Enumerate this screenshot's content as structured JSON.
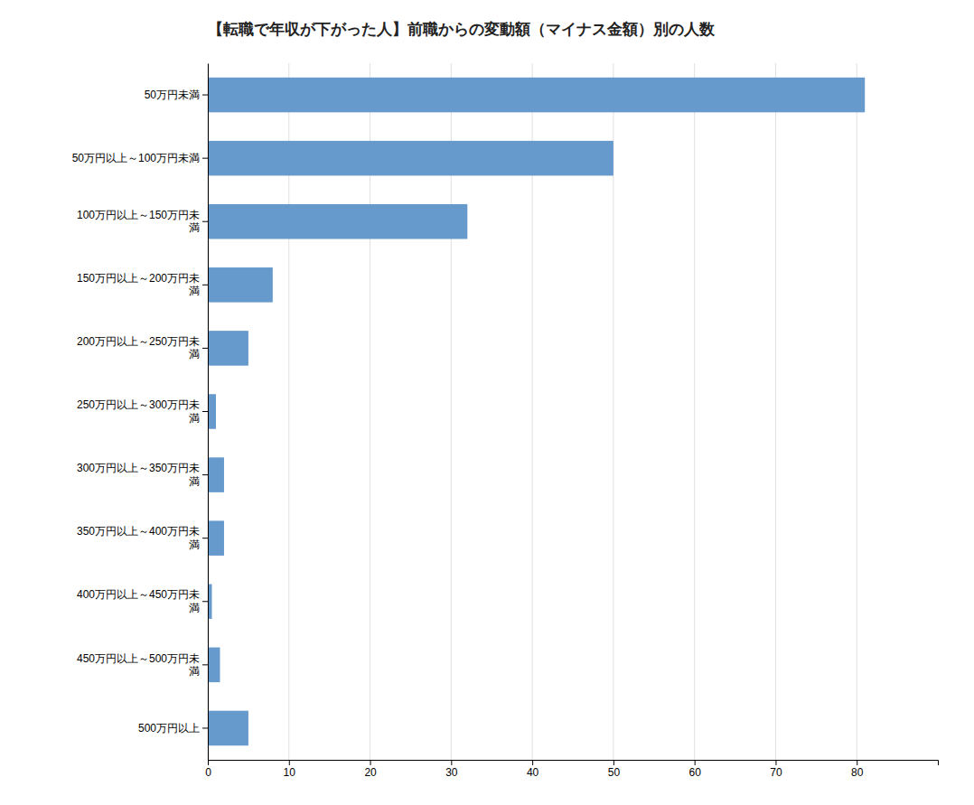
{
  "chart_data": {
    "type": "bar",
    "orientation": "horizontal",
    "title": "【転職で年収が下がった人】前職からの変動額（マイナス金額）別の人数",
    "categories": [
      "50万円未満",
      "50万円以上～100万円未満",
      "100万円以上～150万円未\n満",
      "150万円以上～200万円未\n満",
      "200万円以上～250万円未\n満",
      "250万円以上～300万円未\n満",
      "300万円以上～350万円未\n満",
      "350万円以上～400万円未\n満",
      "400万円以上～450万円未\n満",
      "450万円以上～500万円未\n満",
      "500万円以上"
    ],
    "values": [
      81,
      50,
      32,
      8,
      5,
      1,
      2,
      2,
      0.5,
      1.5,
      5
    ],
    "color": "#6699cc",
    "xlim": [
      0,
      90
    ],
    "xticks": [
      0,
      10,
      20,
      30,
      40,
      50,
      60,
      70,
      80
    ],
    "grid": true
  }
}
